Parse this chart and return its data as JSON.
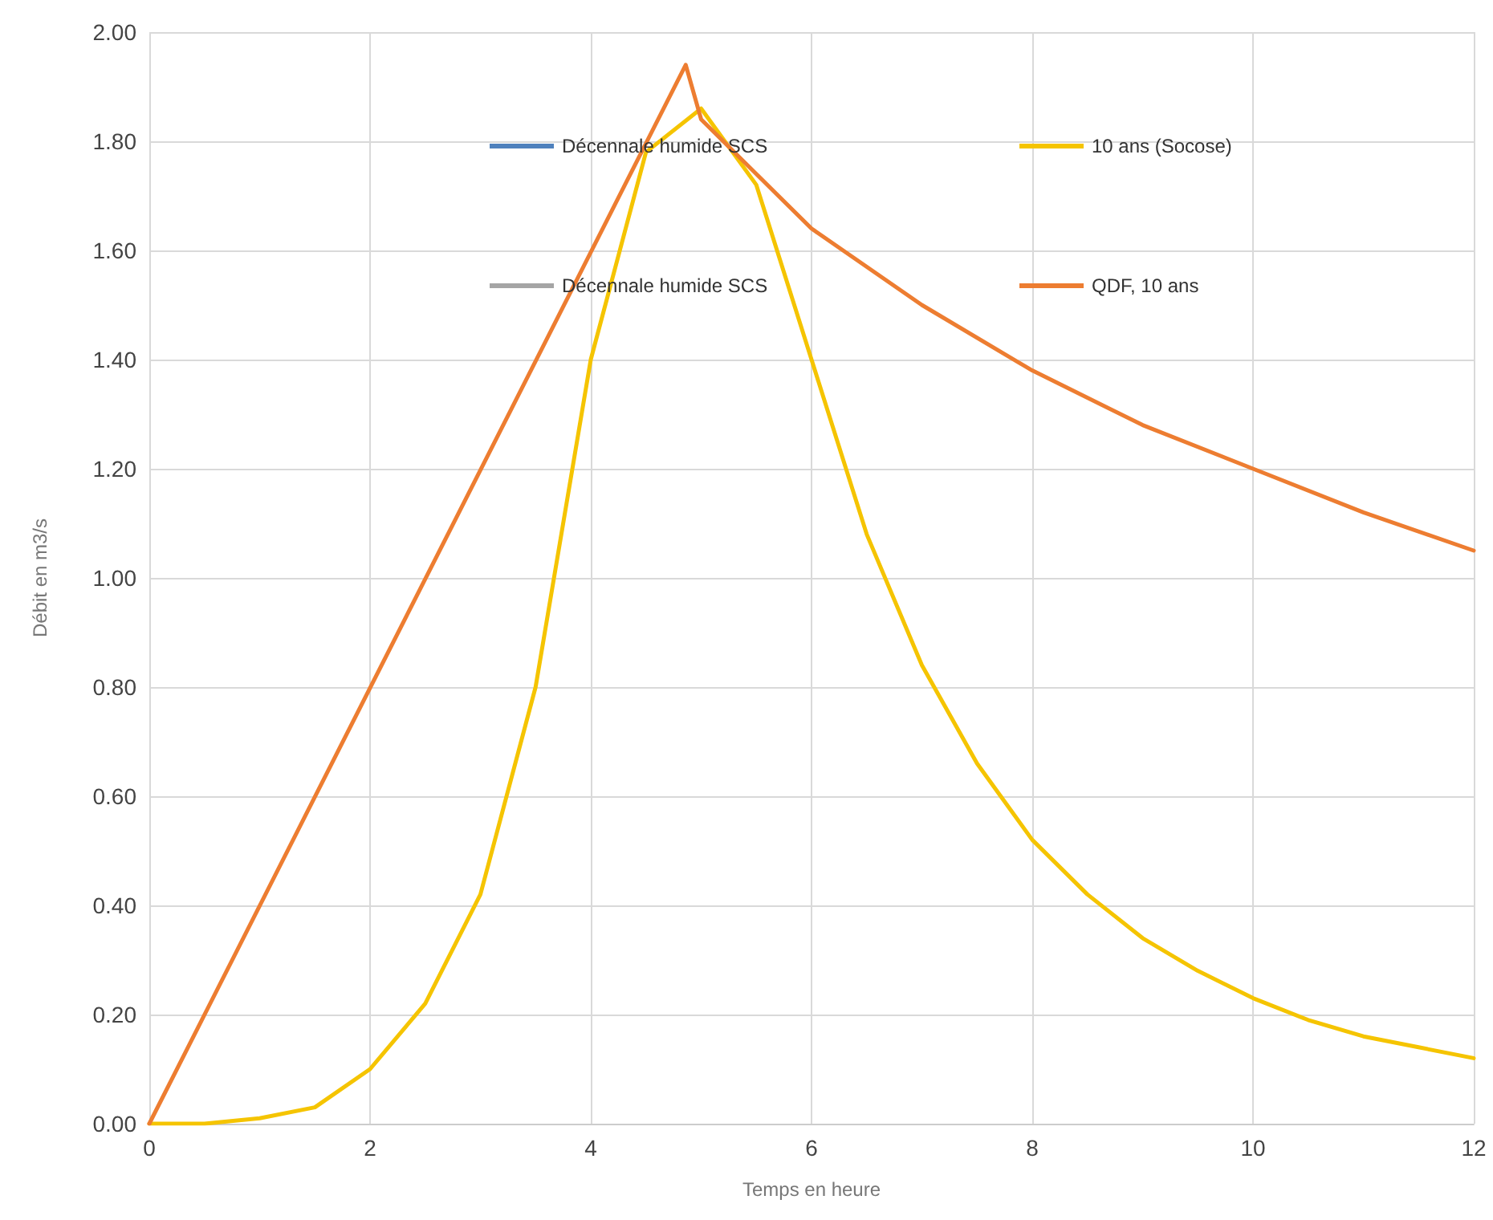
{
  "chart_data": {
    "type": "line",
    "xlabel": "Temps en heure",
    "ylabel": "Débit en m3/s",
    "xlim": [
      0,
      12
    ],
    "xticks": [
      0,
      2,
      4,
      6,
      8,
      10,
      12
    ],
    "ylim": [
      0,
      2
    ],
    "yticks": [
      {
        "value": 0,
        "label": "0.00"
      },
      {
        "value": 0.2,
        "label": "0.20"
      },
      {
        "value": 0.4,
        "label": "0.40"
      },
      {
        "value": 0.6,
        "label": "0.60"
      },
      {
        "value": 0.8,
        "label": "0.80"
      },
      {
        "value": 1,
        "label": "1.00"
      },
      {
        "value": 1.2,
        "label": "1.20"
      },
      {
        "value": 1.4,
        "label": "1.40"
      },
      {
        "value": 1.6,
        "label": "1.60"
      },
      {
        "value": 1.8,
        "label": "1.80"
      },
      {
        "value": 2,
        "label": "2.00"
      }
    ],
    "grid": true,
    "legend": "top",
    "marker": "none",
    "line_style": "solid",
    "series": [
      {
        "name": "Décennale humide SCS",
        "color": "#4f81bd"
      },
      {
        "name": "10 ans (Socose)",
        "color": "#f5c400",
        "x": [
          0,
          0.5,
          1,
          1.5,
          2,
          2.5,
          3,
          3.5,
          4,
          4.5,
          5,
          5.5,
          6,
          6.5,
          7,
          7.5,
          8,
          8.5,
          9,
          9.5,
          10,
          10.5,
          11,
          11.5,
          12
        ],
        "values": [
          0,
          0,
          0.01,
          0.03,
          0.1,
          0.22,
          0.42,
          0.8,
          1.4,
          1.78,
          1.86,
          1.72,
          1.4,
          1.08,
          0.84,
          0.66,
          0.52,
          0.42,
          0.34,
          0.28,
          0.23,
          0.19,
          0.16,
          0.14,
          0.12
        ]
      },
      {
        "name": "Décennale humide SCS",
        "color": "#a5a5a5"
      },
      {
        "name": "QDF, 10 ans",
        "color": "#ed7d31",
        "x": [
          0,
          4.86,
          5,
          6,
          7,
          8,
          9,
          10,
          11,
          12
        ],
        "values": [
          0,
          1.94,
          1.84,
          1.64,
          1.5,
          1.38,
          1.28,
          1.2,
          1.12,
          1.05
        ]
      }
    ]
  }
}
